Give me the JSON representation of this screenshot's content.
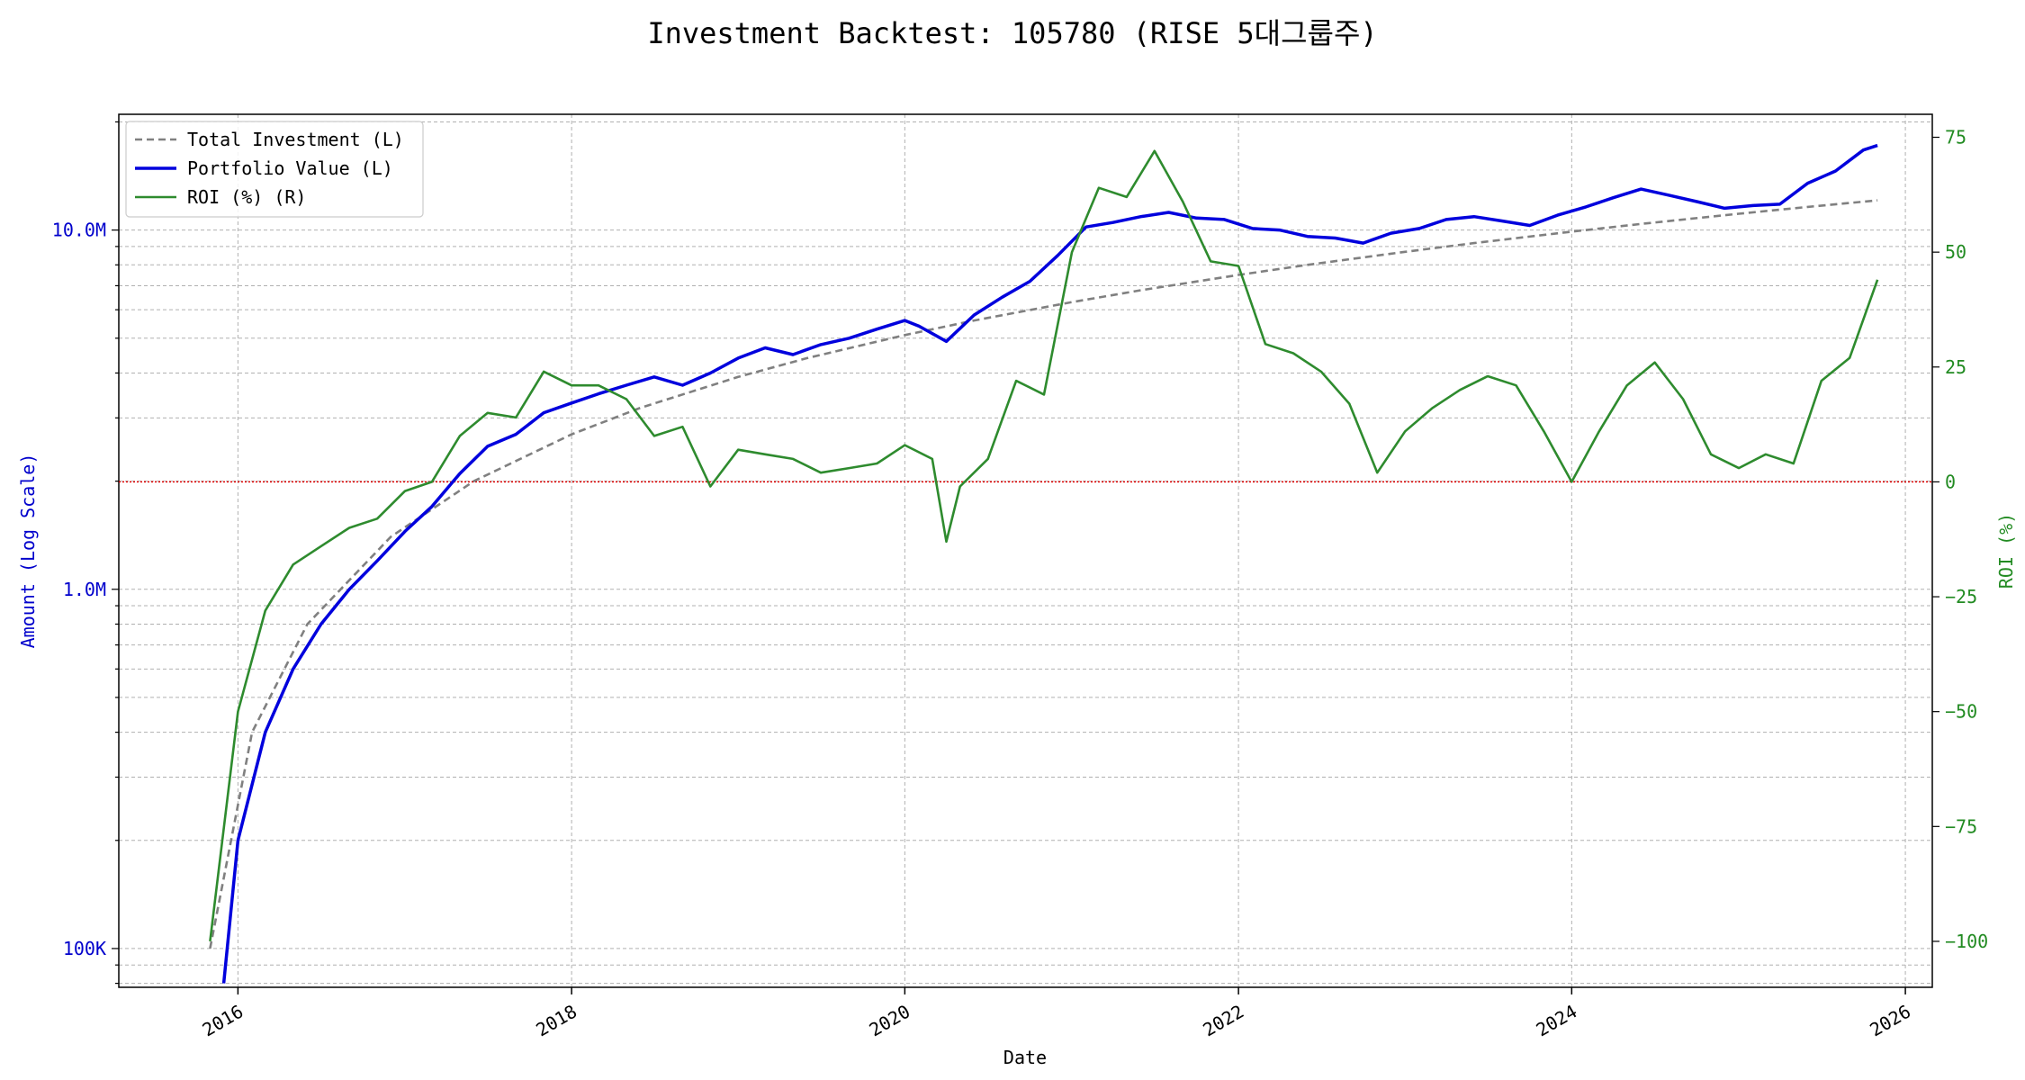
{
  "chart_data": {
    "type": "line",
    "title": "Investment Backtest: 105780 (RISE 5대그룹주)",
    "xlabel": "Date",
    "ylabel_left": "Amount (Log Scale)",
    "ylabel_right": "ROI (%)",
    "left_scale": "log",
    "left_ylim": [
      78000,
      21000000
    ],
    "right_ylim": [
      -110,
      80
    ],
    "xlim": [
      "2015-04-15",
      "2026-03-01"
    ],
    "grid": true,
    "legend_position": "top-left",
    "x_ticks": [
      "2016",
      "2018",
      "2020",
      "2022",
      "2024",
      "2026"
    ],
    "left_ticks": [
      {
        "value": 100000,
        "label": "100K"
      },
      {
        "value": 1000000,
        "label": "1.0M"
      },
      {
        "value": 10000000,
        "label": "10.0M"
      }
    ],
    "right_ticks": [
      {
        "value": -100,
        "label": "−100"
      },
      {
        "value": -75,
        "label": "−75"
      },
      {
        "value": -50,
        "label": "−50"
      },
      {
        "value": -25,
        "label": "−25"
      },
      {
        "value": 0,
        "label": "0"
      },
      {
        "value": 25,
        "label": "25"
      },
      {
        "value": 50,
        "label": "50"
      },
      {
        "value": 75,
        "label": "75"
      }
    ],
    "zero_line": {
      "axis": "right",
      "value": 0,
      "color": "#e00000"
    },
    "series": [
      {
        "name": "Total Investment (L)",
        "axis": "left",
        "color": "#808080",
        "style": "dashed",
        "x": [
          "2015-11-01",
          "2016-02-01",
          "2016-06-01",
          "2016-12-01",
          "2017-06-01",
          "2018-01-01",
          "2018-06-01",
          "2019-01-01",
          "2019-06-01",
          "2020-01-01",
          "2020-06-01",
          "2021-01-01",
          "2021-06-01",
          "2022-01-01",
          "2022-06-01",
          "2023-01-01",
          "2023-06-01",
          "2024-01-01",
          "2024-06-01",
          "2025-01-01",
          "2025-06-01",
          "2025-11-01"
        ],
        "values": [
          100000,
          400000,
          800000,
          1400000,
          2000000,
          2700000,
          3200000,
          3900000,
          4400000,
          5100000,
          5600000,
          6300000,
          6800000,
          7500000,
          8000000,
          8700000,
          9200000,
          9900000,
          10400000,
          11100000,
          11600000,
          12100000
        ]
      },
      {
        "name": "Portfolio Value (L)",
        "axis": "left",
        "color": "#0000dd",
        "style": "solid",
        "x": [
          "2015-12-01",
          "2016-01-01",
          "2016-03-01",
          "2016-05-01",
          "2016-07-01",
          "2016-09-01",
          "2016-11-01",
          "2017-01-01",
          "2017-03-01",
          "2017-05-01",
          "2017-07-01",
          "2017-09-01",
          "2017-11-01",
          "2018-01-01",
          "2018-03-01",
          "2018-05-01",
          "2018-07-01",
          "2018-09-01",
          "2018-11-01",
          "2019-01-01",
          "2019-03-01",
          "2019-05-01",
          "2019-07-01",
          "2019-09-01",
          "2019-11-01",
          "2020-01-01",
          "2020-02-01",
          "2020-04-01",
          "2020-06-01",
          "2020-08-01",
          "2020-10-01",
          "2020-12-01",
          "2021-02-01",
          "2021-04-01",
          "2021-06-01",
          "2021-08-01",
          "2021-10-01",
          "2021-12-01",
          "2022-02-01",
          "2022-04-01",
          "2022-06-01",
          "2022-08-01",
          "2022-10-01",
          "2022-12-01",
          "2023-02-01",
          "2023-04-01",
          "2023-06-01",
          "2023-08-01",
          "2023-10-01",
          "2023-12-01",
          "2024-02-01",
          "2024-04-01",
          "2024-06-01",
          "2024-08-01",
          "2024-10-01",
          "2024-12-01",
          "2025-02-01",
          "2025-04-01",
          "2025-06-01",
          "2025-08-01",
          "2025-10-01",
          "2025-11-01"
        ],
        "values": [
          80000,
          200000,
          400000,
          600000,
          800000,
          1000000,
          1200000,
          1450000,
          1700000,
          2100000,
          2500000,
          2700000,
          3100000,
          3300000,
          3500000,
          3700000,
          3900000,
          3700000,
          4000000,
          4400000,
          4700000,
          4500000,
          4800000,
          5000000,
          5300000,
          5600000,
          5400000,
          4900000,
          5800000,
          6500000,
          7200000,
          8500000,
          10200000,
          10500000,
          10900000,
          11200000,
          10800000,
          10700000,
          10100000,
          10000000,
          9600000,
          9500000,
          9200000,
          9800000,
          10100000,
          10700000,
          10900000,
          10600000,
          10300000,
          11000000,
          11600000,
          12300000,
          13000000,
          12500000,
          12000000,
          11500000,
          11700000,
          11800000,
          13500000,
          14600000,
          16700000,
          17200000
        ]
      },
      {
        "name": "ROI (%) (R)",
        "axis": "right",
        "color": "#2e8b2e",
        "style": "solid",
        "x": [
          "2015-11-01",
          "2016-01-01",
          "2016-03-01",
          "2016-05-01",
          "2016-07-01",
          "2016-09-01",
          "2016-11-01",
          "2017-01-01",
          "2017-03-01",
          "2017-05-01",
          "2017-07-01",
          "2017-09-01",
          "2017-11-01",
          "2018-01-01",
          "2018-03-01",
          "2018-05-01",
          "2018-07-01",
          "2018-09-01",
          "2018-11-01",
          "2019-01-01",
          "2019-03-01",
          "2019-05-01",
          "2019-07-01",
          "2019-09-01",
          "2019-11-01",
          "2020-01-01",
          "2020-03-01",
          "2020-04-01",
          "2020-05-01",
          "2020-07-01",
          "2020-09-01",
          "2020-11-01",
          "2021-01-01",
          "2021-03-01",
          "2021-05-01",
          "2021-07-01",
          "2021-09-01",
          "2021-11-01",
          "2022-01-01",
          "2022-03-01",
          "2022-05-01",
          "2022-07-01",
          "2022-09-01",
          "2022-11-01",
          "2023-01-01",
          "2023-03-01",
          "2023-05-01",
          "2023-07-01",
          "2023-09-01",
          "2023-11-01",
          "2024-01-01",
          "2024-03-01",
          "2024-05-01",
          "2024-07-01",
          "2024-09-01",
          "2024-11-01",
          "2025-01-01",
          "2025-03-01",
          "2025-05-01",
          "2025-07-01",
          "2025-09-01",
          "2025-11-01"
        ],
        "values": [
          -100,
          -50,
          -28,
          -18,
          -14,
          -10,
          -8,
          -2,
          0,
          10,
          15,
          14,
          24,
          21,
          21,
          18,
          10,
          12,
          -1,
          7,
          6,
          5,
          2,
          3,
          4,
          8,
          5,
          -13,
          -1,
          5,
          22,
          19,
          50,
          64,
          62,
          72,
          61,
          48,
          47,
          30,
          28,
          24,
          17,
          2,
          11,
          16,
          20,
          23,
          21,
          11,
          0,
          11,
          21,
          26,
          18,
          6,
          3,
          6,
          4,
          22,
          27,
          44
        ]
      }
    ]
  }
}
